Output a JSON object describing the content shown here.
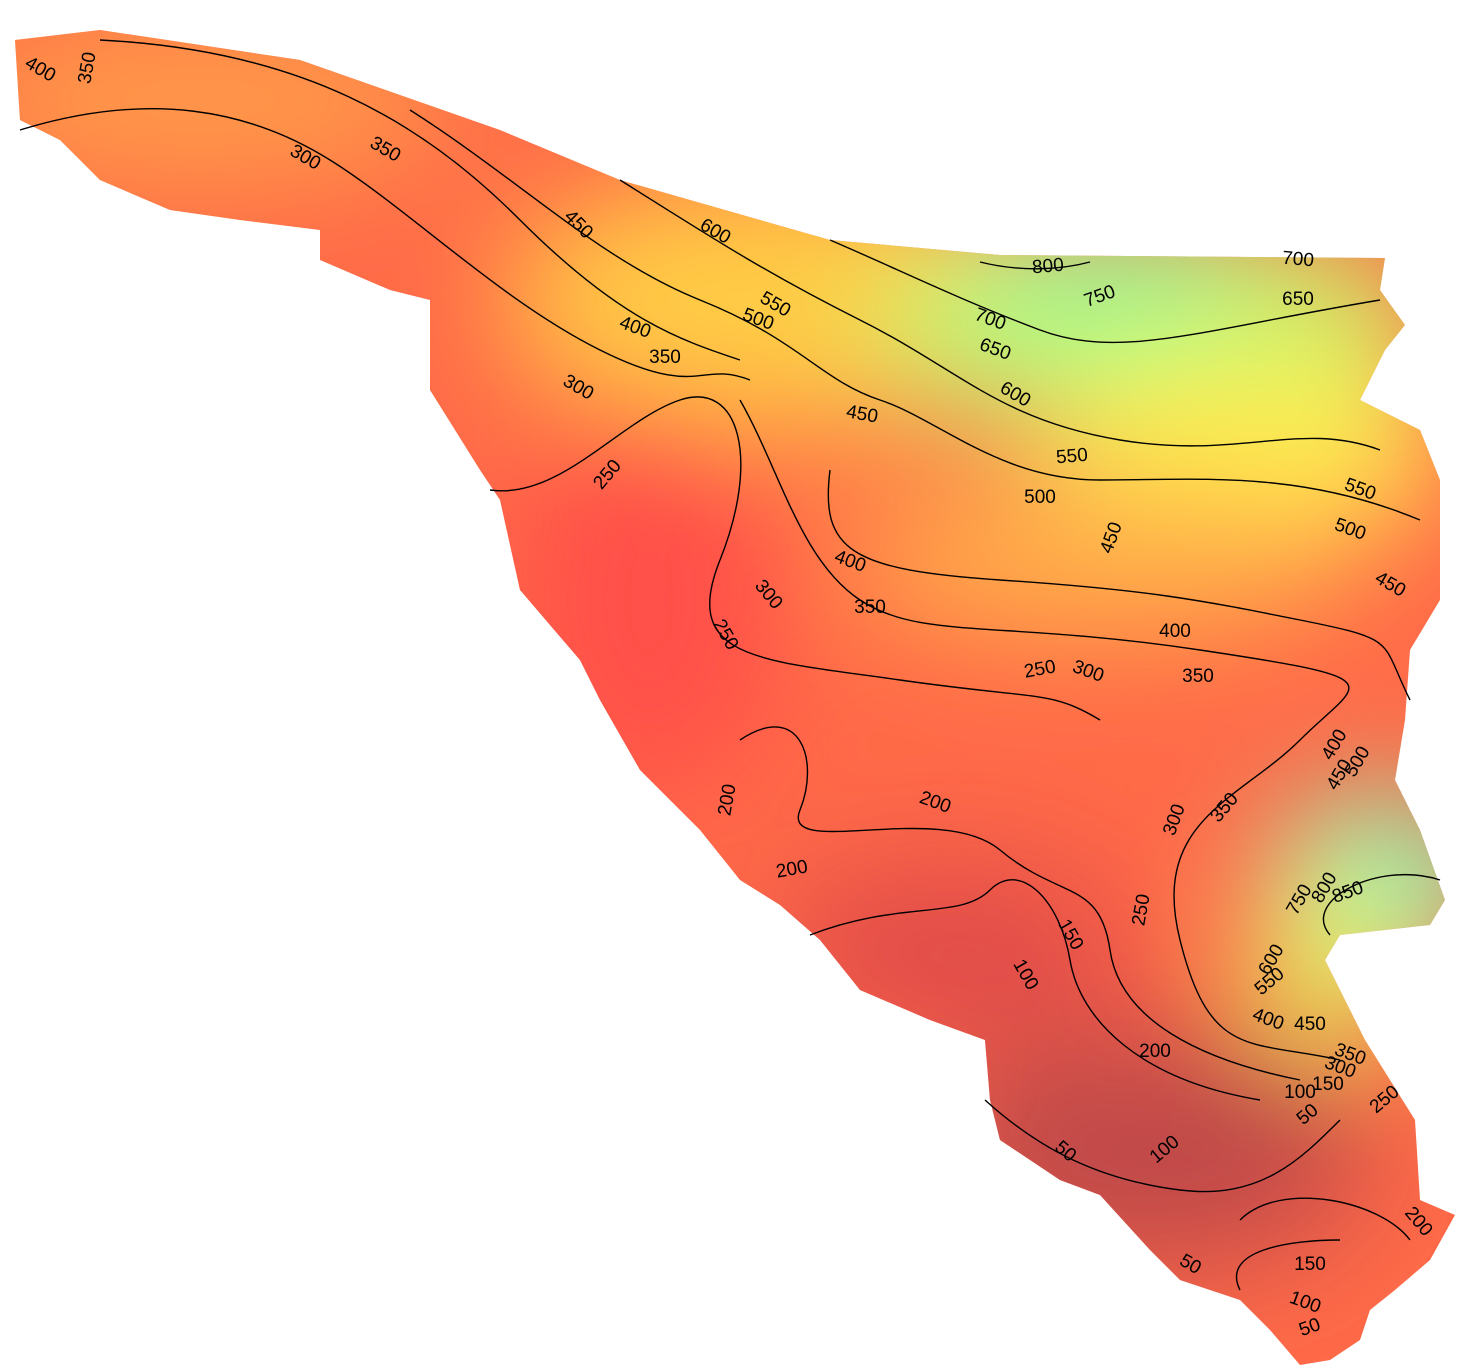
{
  "contour_labels": [
    400,
    350,
    350,
    300,
    450,
    600,
    800,
    700,
    750,
    650,
    550,
    500,
    700,
    650,
    400,
    350,
    600,
    300,
    450,
    550,
    250,
    500,
    550,
    450,
    500,
    400,
    450,
    300,
    350,
    250,
    400,
    250,
    300,
    350,
    400,
    450,
    500,
    200,
    200,
    300,
    350,
    200,
    850,
    800,
    750,
    150,
    250,
    100,
    400,
    450,
    550,
    600,
    200,
    350,
    300,
    150,
    250,
    100,
    50,
    100,
    50,
    200,
    150,
    50,
    100,
    50
  ]
}
